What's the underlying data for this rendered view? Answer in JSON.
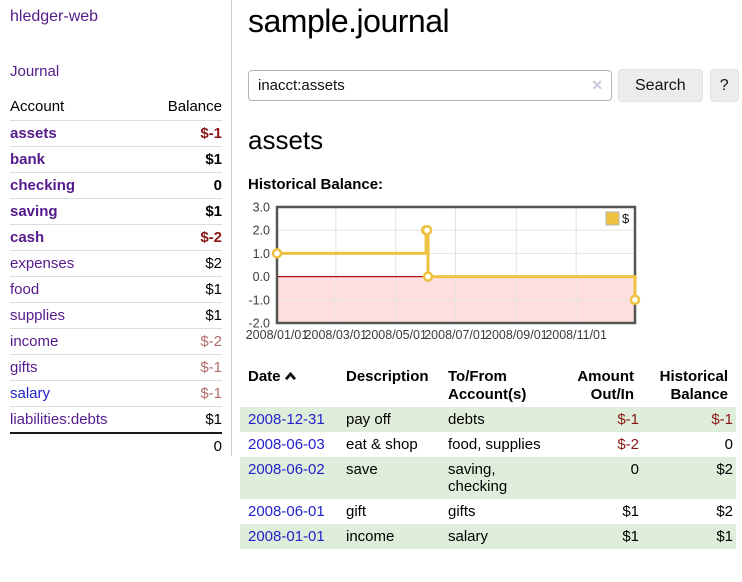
{
  "app": {
    "brand": "hledger-web",
    "nav": {
      "journal": "Journal"
    }
  },
  "colors": {
    "link_purple": "#551a8b",
    "link_blue": "#2222cc",
    "negative_strong": "#8b1515",
    "negative_soft": "#b36d6d",
    "row_shade_green": "#dfeeda",
    "chart_series_gold": "#edc240",
    "chart_negative_fill": "#ffdede",
    "chart_zero_line": "#aa1111"
  },
  "sidebar": {
    "headers": {
      "account": "Account",
      "balance": "Balance"
    },
    "accounts": [
      {
        "name": "assets",
        "depth": 0,
        "bold": true,
        "link": "purple",
        "balance": "$-1",
        "balance_tone": "negstrong"
      },
      {
        "name": "bank",
        "depth": 1,
        "bold": true,
        "link": "purple",
        "balance": "$1",
        "balance_tone": "black"
      },
      {
        "name": "checking",
        "depth": 2,
        "bold": true,
        "link": "purple",
        "balance": "0",
        "balance_tone": "black"
      },
      {
        "name": "saving",
        "depth": 2,
        "bold": true,
        "link": "purple",
        "balance": "$1",
        "balance_tone": "black"
      },
      {
        "name": "cash",
        "depth": 1,
        "bold": true,
        "link": "purple",
        "balance": "$-2",
        "balance_tone": "negstrong"
      },
      {
        "name": "expenses",
        "depth": 0,
        "bold": false,
        "link": "purple",
        "balance": "$2",
        "balance_tone": "black"
      },
      {
        "name": "food",
        "depth": 1,
        "bold": false,
        "link": "purple",
        "balance": "$1",
        "balance_tone": "black"
      },
      {
        "name": "supplies",
        "depth": 1,
        "bold": false,
        "link": "purple",
        "balance": "$1",
        "balance_tone": "black"
      },
      {
        "name": "income",
        "depth": 0,
        "bold": false,
        "link": "purple",
        "balance": "$-2",
        "balance_tone": "negsoft"
      },
      {
        "name": "gifts",
        "depth": 1,
        "bold": false,
        "link": "purple",
        "balance": "$-1",
        "balance_tone": "negsoft"
      },
      {
        "name": "salary",
        "depth": 1,
        "bold": false,
        "link": "blue",
        "balance": "$-1",
        "balance_tone": "negsoft"
      },
      {
        "name": "liabilities:debts",
        "depth": 0,
        "bold": false,
        "link": "purple",
        "balance": "$1",
        "balance_tone": "black"
      }
    ],
    "total": "0"
  },
  "main": {
    "title": "sample.journal",
    "search": {
      "value": "inacct:assets",
      "clear_icon": "✕",
      "search_button": "Search",
      "help_button": "?"
    },
    "account_heading": "assets",
    "chart_label": "Historical Balance:"
  },
  "chart_data": {
    "type": "line",
    "step": true,
    "title": "Historical Balance:",
    "legend": {
      "label": "$",
      "position": "top-right"
    },
    "series": [
      {
        "name": "$",
        "color": "#edc240",
        "points": [
          {
            "x": "2008-01-01",
            "y": 1
          },
          {
            "x": "2008-06-01",
            "y": 2
          },
          {
            "x": "2008-06-02",
            "y": 2
          },
          {
            "x": "2008-06-03",
            "y": 0
          },
          {
            "x": "2008-12-31",
            "y": -1
          }
        ]
      }
    ],
    "x_range": [
      "2008-01-01",
      "2008-12-31"
    ],
    "ylim": [
      -2,
      3
    ],
    "y_ticks": [
      "3.0",
      "2.0",
      "1.0",
      "0.0",
      "-1.0",
      "-2.0"
    ],
    "x_ticks": [
      {
        "date": "2008-01-01",
        "label": "2008/01/01"
      },
      {
        "date": "2008-03-01",
        "label": "2008/03/01"
      },
      {
        "date": "2008-05-01",
        "label": "2008/05/01"
      },
      {
        "date": "2008-07-01",
        "label": "2008/07/01"
      },
      {
        "date": "2008-09-01",
        "label": "2008/09/01"
      },
      {
        "date": "2008-11-01",
        "label": "2008/11/01"
      }
    ],
    "grid": true,
    "negative_region_shaded": true
  },
  "register": {
    "headers": {
      "date": "Date",
      "sort_direction": "ascending",
      "description": "Description",
      "accounts": "To/From Account(s)",
      "amount": "Amount Out/In",
      "balance": "Historical Balance"
    },
    "rows": [
      {
        "date": "2008-12-31",
        "description": "pay off",
        "accounts": "debts",
        "amount": "$-1",
        "amount_neg": true,
        "balance": "$-1",
        "balance_neg": true,
        "shade": true
      },
      {
        "date": "2008-06-03",
        "description": "eat & shop",
        "accounts": "food, supplies",
        "amount": "$-2",
        "amount_neg": true,
        "balance": "0",
        "balance_neg": false,
        "shade": false
      },
      {
        "date": "2008-06-02",
        "description": "save",
        "accounts": "saving, checking",
        "amount": "0",
        "amount_neg": false,
        "balance": "$2",
        "balance_neg": false,
        "shade": true
      },
      {
        "date": "2008-06-01",
        "description": "gift",
        "accounts": "gifts",
        "amount": "$1",
        "amount_neg": false,
        "balance": "$2",
        "balance_neg": false,
        "shade": false
      },
      {
        "date": "2008-01-01",
        "description": "income",
        "accounts": "salary",
        "amount": "$1",
        "amount_neg": false,
        "balance": "$1",
        "balance_neg": false,
        "shade": true
      }
    ]
  }
}
